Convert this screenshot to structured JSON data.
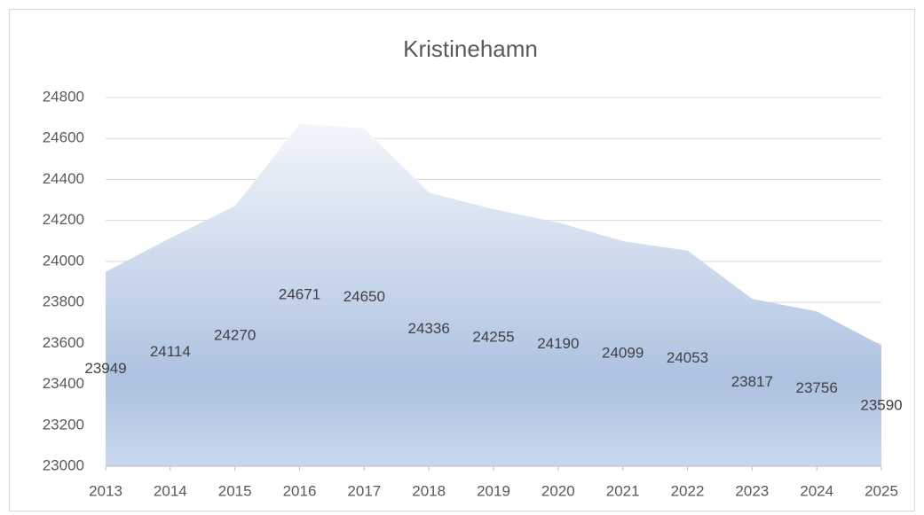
{
  "chart_data": {
    "type": "area",
    "title": "Kristinehamn",
    "categories": [
      "2013",
      "2014",
      "2015",
      "2016",
      "2017",
      "2018",
      "2019",
      "2020",
      "2021",
      "2022",
      "2023",
      "2024",
      "2025"
    ],
    "values": [
      23949,
      24114,
      24270,
      24671,
      24650,
      24336,
      24255,
      24190,
      24099,
      24053,
      23817,
      23756,
      23590
    ],
    "color": "#adc2e0",
    "ylim": [
      23000,
      24800
    ],
    "yticks": [
      23000,
      23200,
      23400,
      23600,
      23800,
      24000,
      24200,
      24400,
      24600,
      24800
    ],
    "grid": true,
    "data_labels": true
  }
}
